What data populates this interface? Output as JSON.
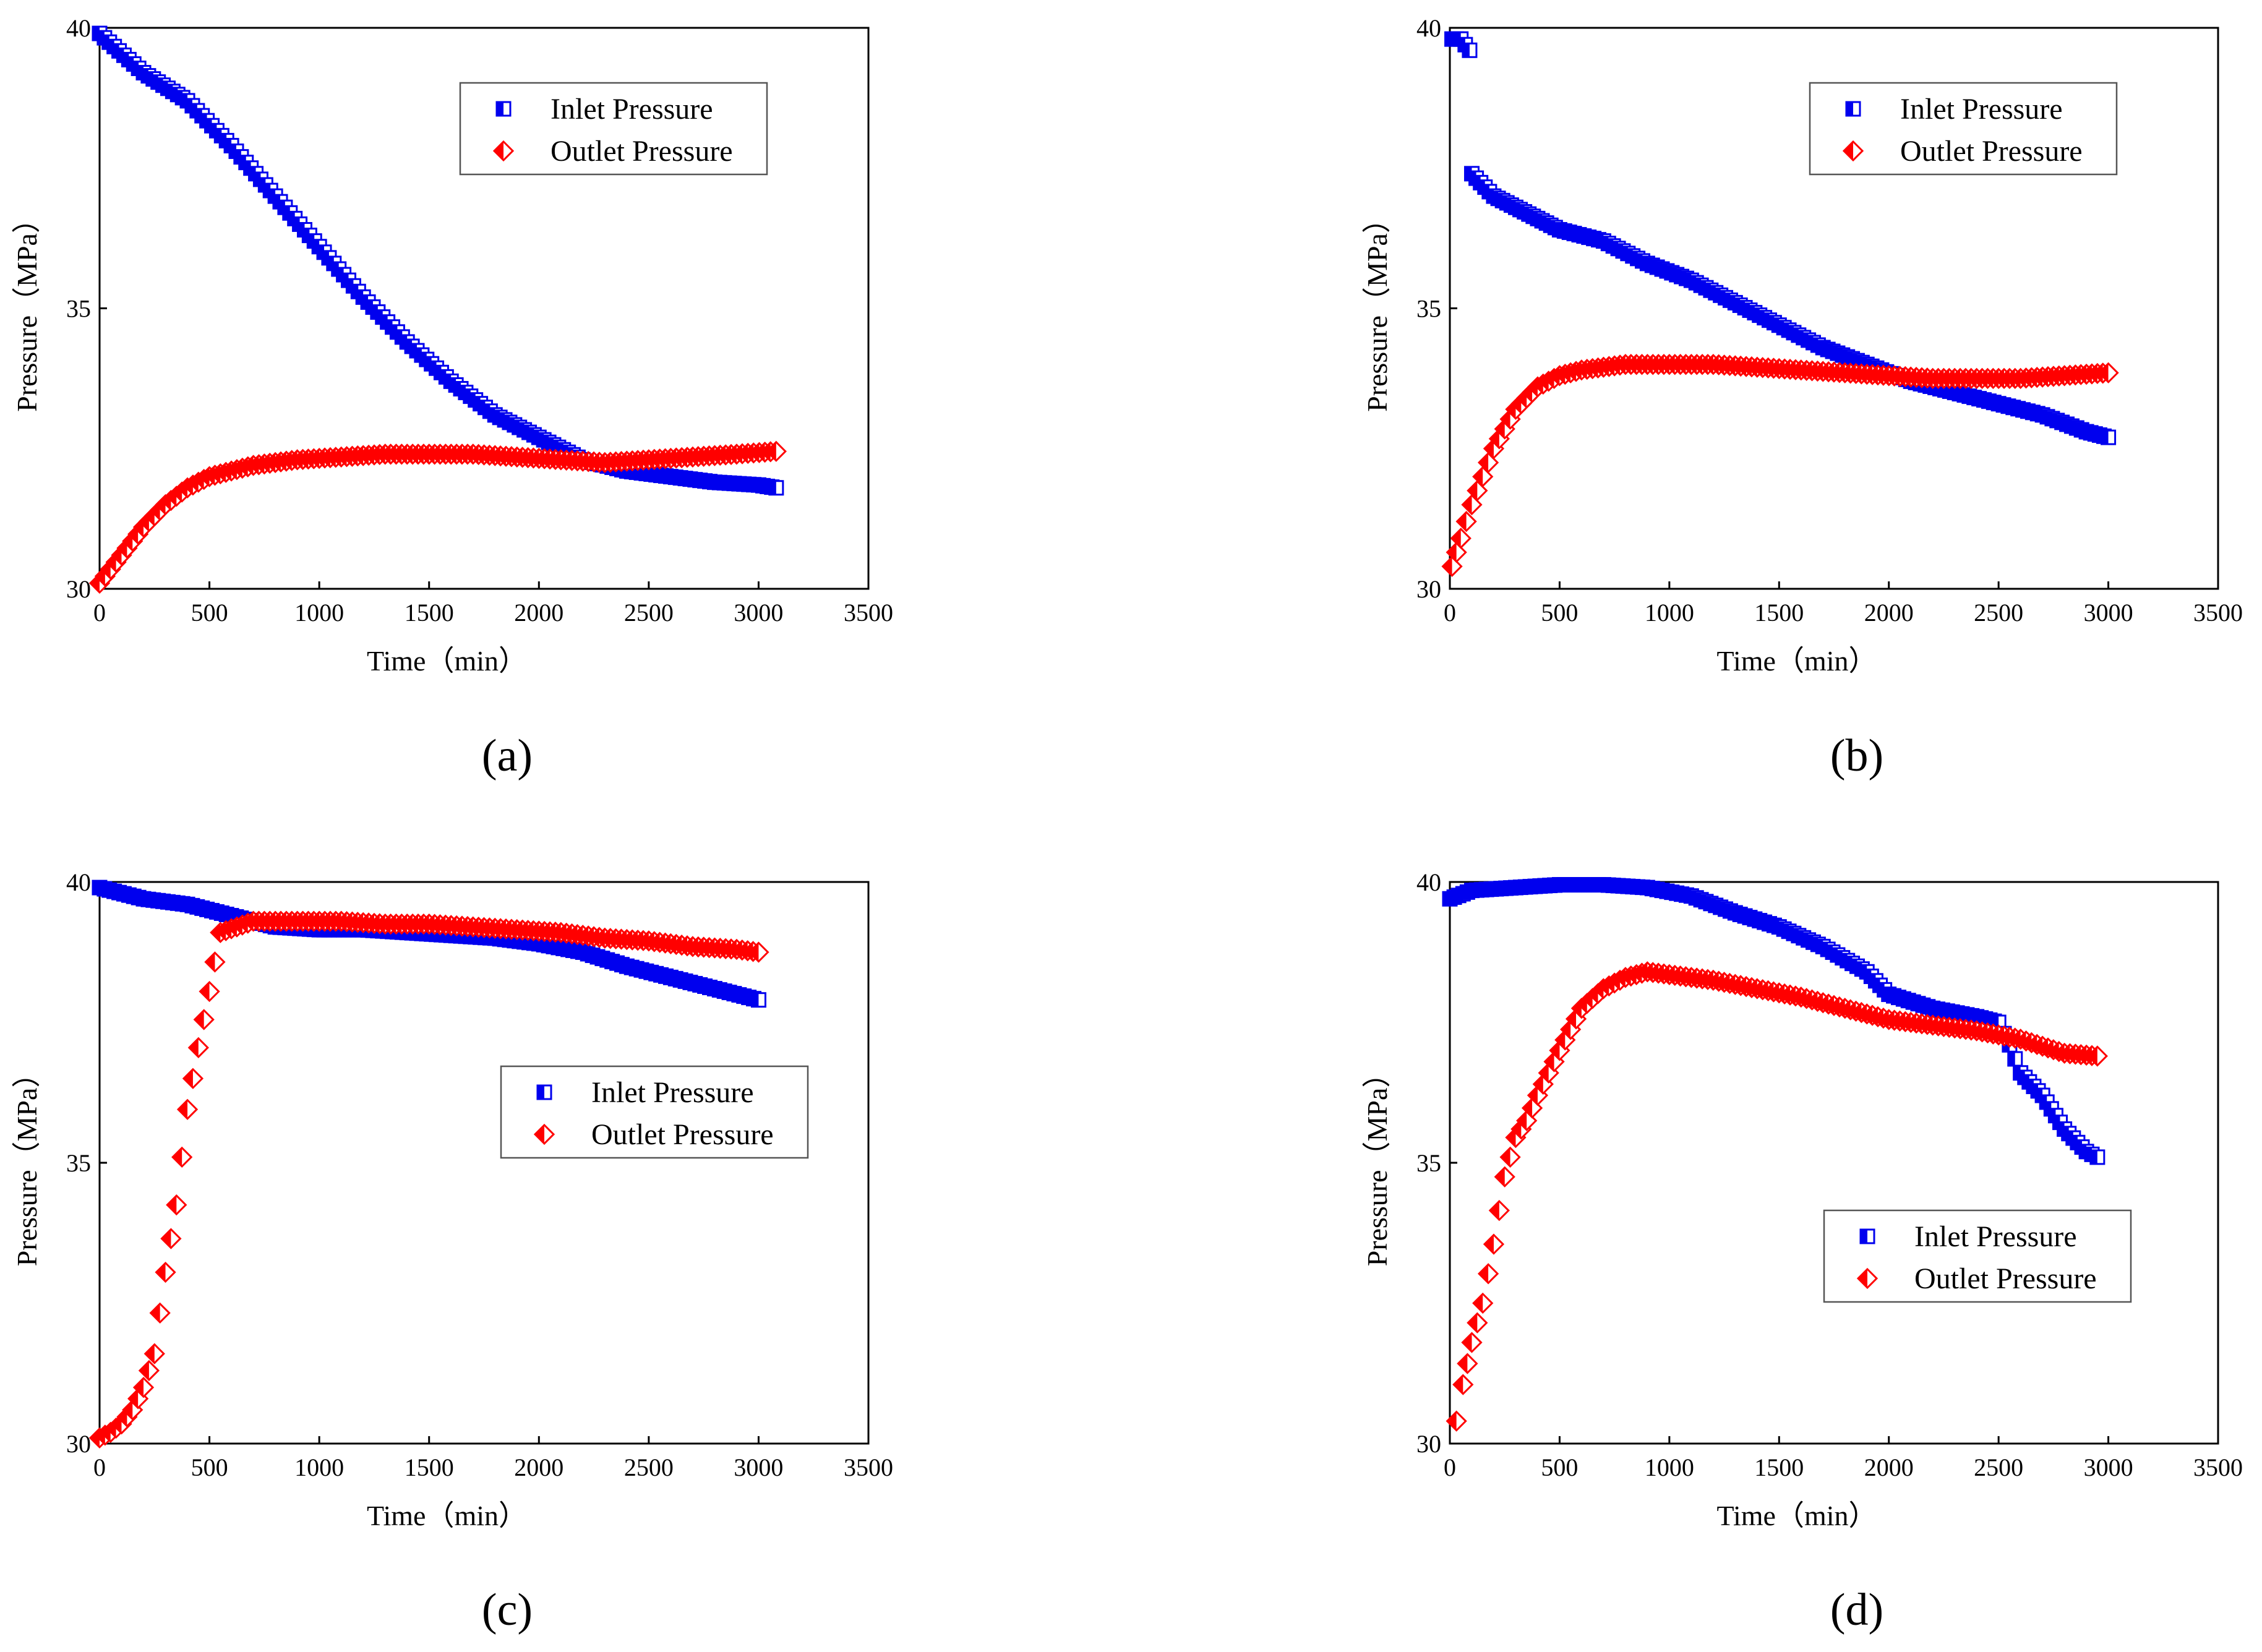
{
  "figure": {
    "panels": [
      {
        "id": "a",
        "label": "(a)"
      },
      {
        "id": "b",
        "label": "(b)"
      },
      {
        "id": "c",
        "label": "(c)"
      },
      {
        "id": "d",
        "label": "(d)"
      }
    ],
    "legend": {
      "inlet": "Inlet Pressure",
      "outlet": "Outlet Pressure"
    }
  },
  "chart_data": [
    {
      "id": "a",
      "type": "scatter",
      "title": "(a)",
      "xlabel": "Time（min）",
      "ylabel": "Pressure（MPa）",
      "xlim": [
        0,
        3500
      ],
      "ylim": [
        30,
        40
      ],
      "xticks": [
        0,
        500,
        1000,
        1500,
        2000,
        2500,
        3000,
        3500
      ],
      "yticks": [
        30,
        35,
        40
      ],
      "legend_position": "top-right",
      "colors": {
        "inlet": "#0000ee",
        "outlet": "#ff0000"
      },
      "series": [
        {
          "name": "Inlet Pressure",
          "marker": "half-filled-square",
          "x": [
            0,
            200,
            400,
            600,
            800,
            1000,
            1200,
            1400,
            1600,
            1800,
            2000,
            2200,
            2400,
            2600,
            2800,
            3000,
            3080
          ],
          "y": [
            39.9,
            39.2,
            38.7,
            37.9,
            37.0,
            36.1,
            35.2,
            34.4,
            33.7,
            33.1,
            32.7,
            32.3,
            32.1,
            32.0,
            31.9,
            31.85,
            31.8
          ]
        },
        {
          "name": "Outlet Pressure",
          "marker": "half-filled-diamond",
          "x": [
            0,
            100,
            200,
            300,
            400,
            500,
            700,
            900,
            1100,
            1300,
            1500,
            1700,
            1900,
            2100,
            2300,
            2500,
            2700,
            2900,
            3080
          ],
          "y": [
            30.1,
            30.6,
            31.1,
            31.5,
            31.8,
            32.0,
            32.2,
            32.3,
            32.35,
            32.4,
            32.4,
            32.4,
            32.35,
            32.3,
            32.25,
            32.3,
            32.35,
            32.4,
            32.45
          ]
        }
      ]
    },
    {
      "id": "b",
      "type": "scatter",
      "title": "(b)",
      "xlabel": "Time（min）",
      "ylabel": "Pressure（MPa）",
      "xlim": [
        0,
        3500
      ],
      "ylim": [
        30,
        40
      ],
      "xticks": [
        0,
        500,
        1000,
        1500,
        2000,
        2500,
        3000,
        3500
      ],
      "yticks": [
        30,
        35,
        40
      ],
      "legend_position": "top-right",
      "colors": {
        "inlet": "#0000ee",
        "outlet": "#ff0000"
      },
      "series": [
        {
          "name": "Inlet Pressure",
          "marker": "half-filled-square",
          "x": [
            10,
            50,
            90,
            100,
            200,
            300,
            400,
            500,
            700,
            900,
            1100,
            1300,
            1500,
            1700,
            1900,
            2100,
            2300,
            2500,
            2700,
            2900,
            3000
          ],
          "y": [
            39.8,
            39.8,
            39.6,
            37.4,
            37.0,
            36.8,
            36.6,
            36.4,
            36.2,
            35.8,
            35.5,
            35.1,
            34.7,
            34.3,
            34.0,
            33.7,
            33.5,
            33.3,
            33.1,
            32.8,
            32.7
          ]
        },
        {
          "name": "Outlet Pressure",
          "marker": "half-filled-diamond",
          "x": [
            10,
            50,
            100,
            150,
            200,
            300,
            400,
            500,
            600,
            800,
            1000,
            1200,
            1400,
            1600,
            1800,
            2000,
            2200,
            2400,
            2600,
            2800,
            3000
          ],
          "y": [
            30.4,
            30.9,
            31.5,
            32.0,
            32.5,
            33.2,
            33.6,
            33.8,
            33.9,
            34.0,
            34.0,
            34.0,
            33.95,
            33.9,
            33.85,
            33.8,
            33.75,
            33.75,
            33.75,
            33.8,
            33.85
          ]
        }
      ]
    },
    {
      "id": "c",
      "type": "scatter",
      "title": "(c)",
      "xlabel": "Time（min）",
      "ylabel": "Pressure（MPa）",
      "xlim": [
        0,
        3500
      ],
      "ylim": [
        30,
        40
      ],
      "xticks": [
        0,
        500,
        1000,
        1500,
        2000,
        2500,
        3000,
        3500
      ],
      "yticks": [
        30,
        35,
        40
      ],
      "legend_position": "center-right",
      "colors": {
        "inlet": "#0000ee",
        "outlet": "#ff0000"
      },
      "series": [
        {
          "name": "Inlet Pressure",
          "marker": "half-filled-square",
          "x": [
            0,
            200,
            400,
            600,
            800,
            1000,
            1200,
            1400,
            1600,
            1800,
            2000,
            2200,
            2400,
            2600,
            2800,
            3000
          ],
          "y": [
            39.9,
            39.7,
            39.6,
            39.4,
            39.2,
            39.15,
            39.15,
            39.1,
            39.05,
            39.0,
            38.9,
            38.75,
            38.5,
            38.3,
            38.1,
            37.9
          ]
        },
        {
          "name": "Outlet Pressure",
          "marker": "half-filled-diamond",
          "x": [
            0,
            50,
            100,
            150,
            200,
            250,
            300,
            350,
            400,
            450,
            500,
            550,
            700,
            900,
            1100,
            1300,
            1500,
            1700,
            1900,
            2100,
            2300,
            2500,
            2700,
            2900,
            3000
          ],
          "y": [
            30.1,
            30.2,
            30.35,
            30.6,
            31.0,
            31.6,
            33.05,
            34.25,
            35.95,
            37.05,
            38.05,
            39.1,
            39.3,
            39.3,
            39.3,
            39.25,
            39.25,
            39.2,
            39.15,
            39.1,
            39.0,
            38.95,
            38.85,
            38.8,
            38.75
          ]
        }
      ]
    },
    {
      "id": "d",
      "type": "scatter",
      "title": "(d)",
      "xlabel": "Time（min）",
      "ylabel": "Pressure（MPa）",
      "xlim": [
        0,
        3500
      ],
      "ylim": [
        30,
        40
      ],
      "xticks": [
        0,
        500,
        1000,
        1500,
        2000,
        2500,
        3000,
        3500
      ],
      "yticks": [
        30,
        35,
        40
      ],
      "legend_position": "bottom-right",
      "colors": {
        "inlet": "#0000ee",
        "outlet": "#ff0000"
      },
      "series": [
        {
          "name": "Inlet Pressure",
          "marker": "half-filled-square",
          "x": [
            0,
            100,
            300,
            500,
            700,
            900,
            1100,
            1300,
            1500,
            1700,
            1900,
            2000,
            2200,
            2400,
            2500,
            2550,
            2600,
            2700,
            2800,
            2900,
            2950
          ],
          "y": [
            39.7,
            39.85,
            39.9,
            39.95,
            39.95,
            39.9,
            39.75,
            39.45,
            39.2,
            38.85,
            38.4,
            38.0,
            37.75,
            37.6,
            37.5,
            37.1,
            36.6,
            36.2,
            35.6,
            35.2,
            35.1
          ]
        },
        {
          "name": "Outlet Pressure",
          "marker": "half-filled-diamond",
          "x": [
            30,
            60,
            100,
            150,
            200,
            250,
            300,
            350,
            400,
            500,
            600,
            700,
            800,
            900,
            1000,
            1200,
            1400,
            1600,
            1800,
            2000,
            2200,
            2400,
            2600,
            2800,
            2950
          ],
          "y": [
            30.4,
            31.05,
            31.8,
            32.5,
            33.55,
            34.75,
            35.45,
            35.75,
            36.2,
            37.0,
            37.75,
            38.1,
            38.3,
            38.4,
            38.35,
            38.25,
            38.1,
            37.95,
            37.75,
            37.55,
            37.45,
            37.35,
            37.2,
            36.95,
            36.9
          ]
        }
      ]
    }
  ]
}
